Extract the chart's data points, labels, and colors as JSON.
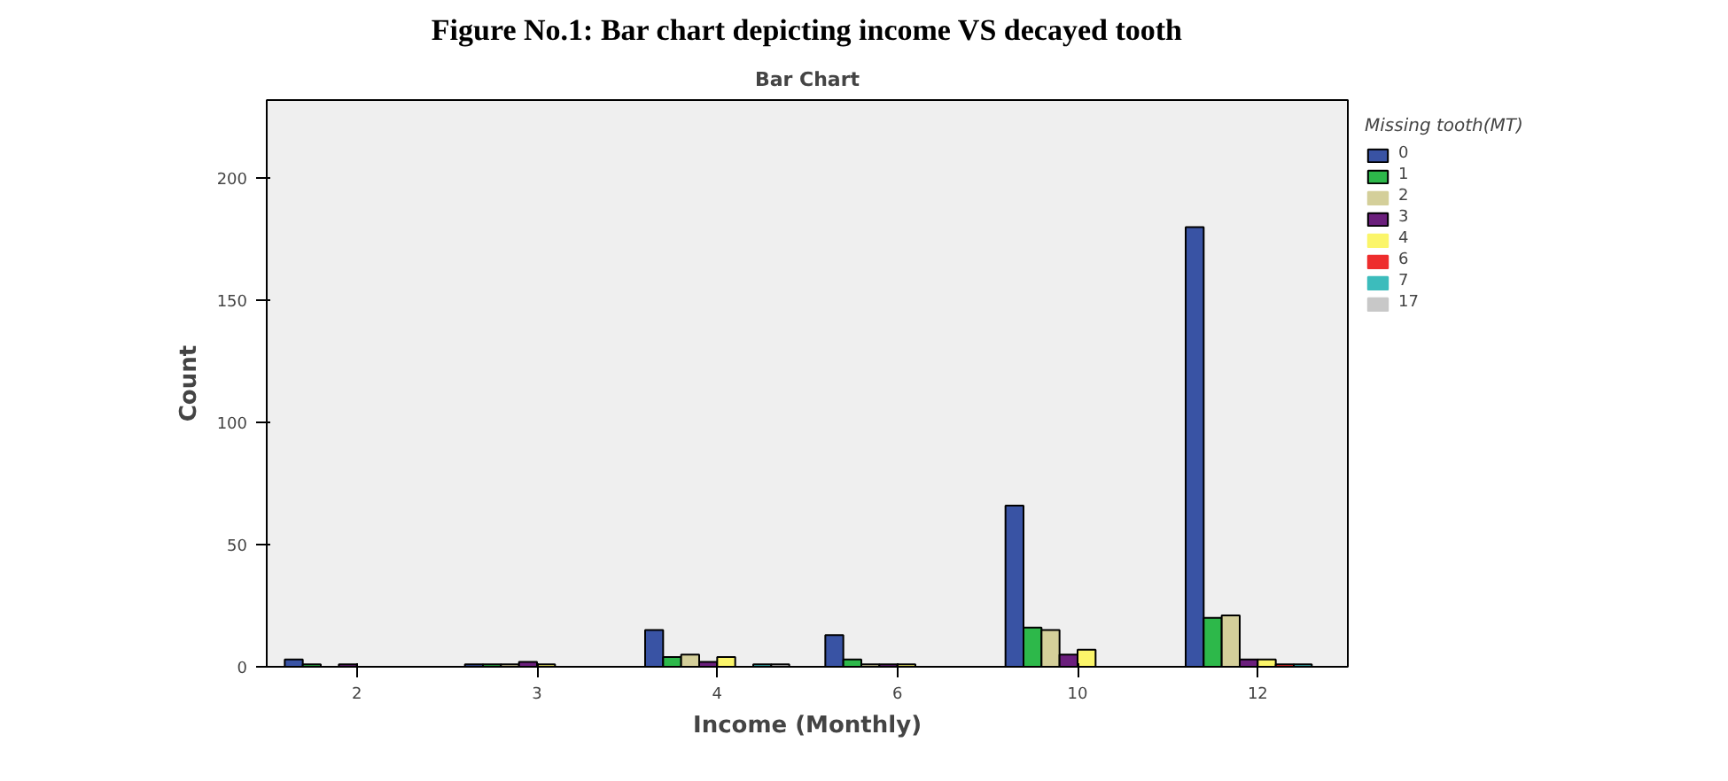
{
  "chart_data": {
    "type": "bar",
    "title": "Bar Chart",
    "subtitle": "Figure No.1: Bar chart depicting income VS decayed tooth",
    "xlabel": "Income (Monthly)",
    "ylabel": "Count",
    "legend_title": "Missing tooth(MT)",
    "legend": "top right",
    "grid": false,
    "categories": [
      "2",
      "3",
      "4",
      "6",
      "10",
      "12"
    ],
    "ylim": [
      0,
      232
    ],
    "yticks": [
      0,
      50,
      100,
      150,
      200
    ],
    "series": [
      {
        "name": "0",
        "color": "#3953a4",
        "values": [
          3,
          1,
          15,
          13,
          66,
          180
        ]
      },
      {
        "name": "1",
        "color": "#2db84a",
        "values": [
          1,
          1,
          4,
          3,
          16,
          20
        ]
      },
      {
        "name": "2",
        "color": "#d4cf9a",
        "values": [
          0,
          1,
          5,
          1,
          15,
          21
        ]
      },
      {
        "name": "3",
        "color": "#6b1f7c",
        "values": [
          1,
          2,
          2,
          1,
          5,
          3
        ]
      },
      {
        "name": "4",
        "color": "#fbf56a",
        "values": [
          0,
          1,
          4,
          1,
          7,
          3
        ]
      },
      {
        "name": "6",
        "color": "#ee2d2d",
        "values": [
          0,
          0,
          0,
          0,
          0,
          1
        ]
      },
      {
        "name": "7",
        "color": "#3cbcbc",
        "values": [
          0,
          0,
          1,
          0,
          0,
          1
        ]
      },
      {
        "name": "17",
        "color": "#c8c8c8",
        "values": [
          0,
          0,
          1,
          0,
          0,
          0
        ]
      }
    ]
  }
}
